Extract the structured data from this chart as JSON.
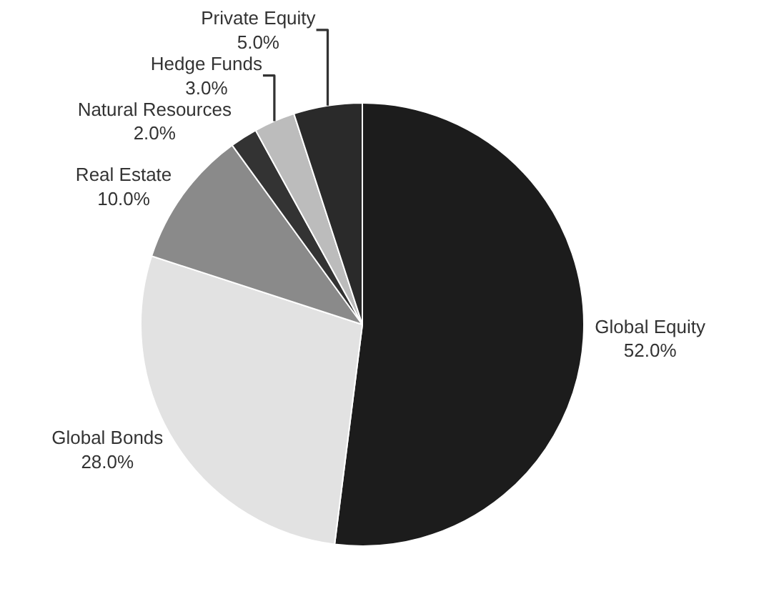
{
  "chart_data": {
    "type": "pie",
    "categories": [
      "Global Equity",
      "Global Bonds",
      "Real Estate",
      "Natural Resources",
      "Hedge Funds",
      "Private Equity"
    ],
    "values": [
      52,
      28,
      10,
      2,
      3,
      5
    ],
    "value_labels": [
      "52.0%",
      "28.0%",
      "10.0%",
      "2.0%",
      "3.0%",
      "5.0%"
    ],
    "colors": [
      "#1c1c1c",
      "#e2e2e2",
      "#8a8a8a",
      "#333333",
      "#bcbcbc",
      "#2a2a2a"
    ],
    "legend": false
  }
}
